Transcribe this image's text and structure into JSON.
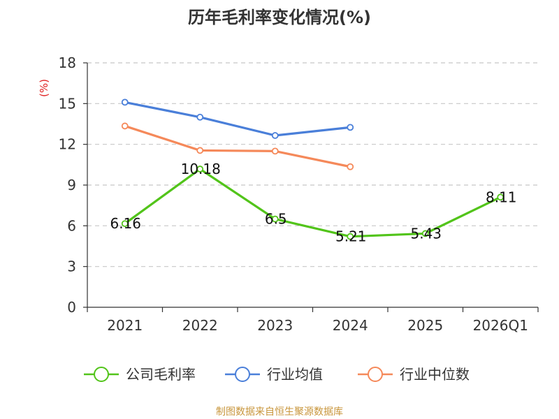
{
  "chart_data": {
    "type": "line",
    "title": "历年毛利率变化情况(%)",
    "ylabel": "(%)",
    "xlabel": "",
    "categories": [
      "2021",
      "2022",
      "2023",
      "2024",
      "2025",
      "2026Q1"
    ],
    "ylim": [
      0,
      18
    ],
    "yticks": [
      0,
      3,
      6,
      9,
      12,
      15,
      18
    ],
    "grid": true,
    "legend_position": "bottom",
    "series": [
      {
        "name": "公司毛利率",
        "color": "#52c41a",
        "labeled": true,
        "values": [
          6.16,
          10.18,
          6.5,
          5.21,
          5.43,
          8.11
        ],
        "labels": [
          "6.16",
          "10.18",
          "6.5",
          "5.21",
          "5.43",
          "8.11"
        ]
      },
      {
        "name": "行业均值",
        "color": "#4a7fd9",
        "labeled": false,
        "values": [
          15.1,
          14.0,
          12.65,
          13.25,
          null,
          null
        ]
      },
      {
        "name": "行业中位数",
        "color": "#f5895a",
        "labeled": false,
        "values": [
          13.35,
          11.55,
          11.5,
          10.35,
          null,
          null
        ]
      }
    ]
  },
  "source": "制图数据来自恒生聚源数据库"
}
